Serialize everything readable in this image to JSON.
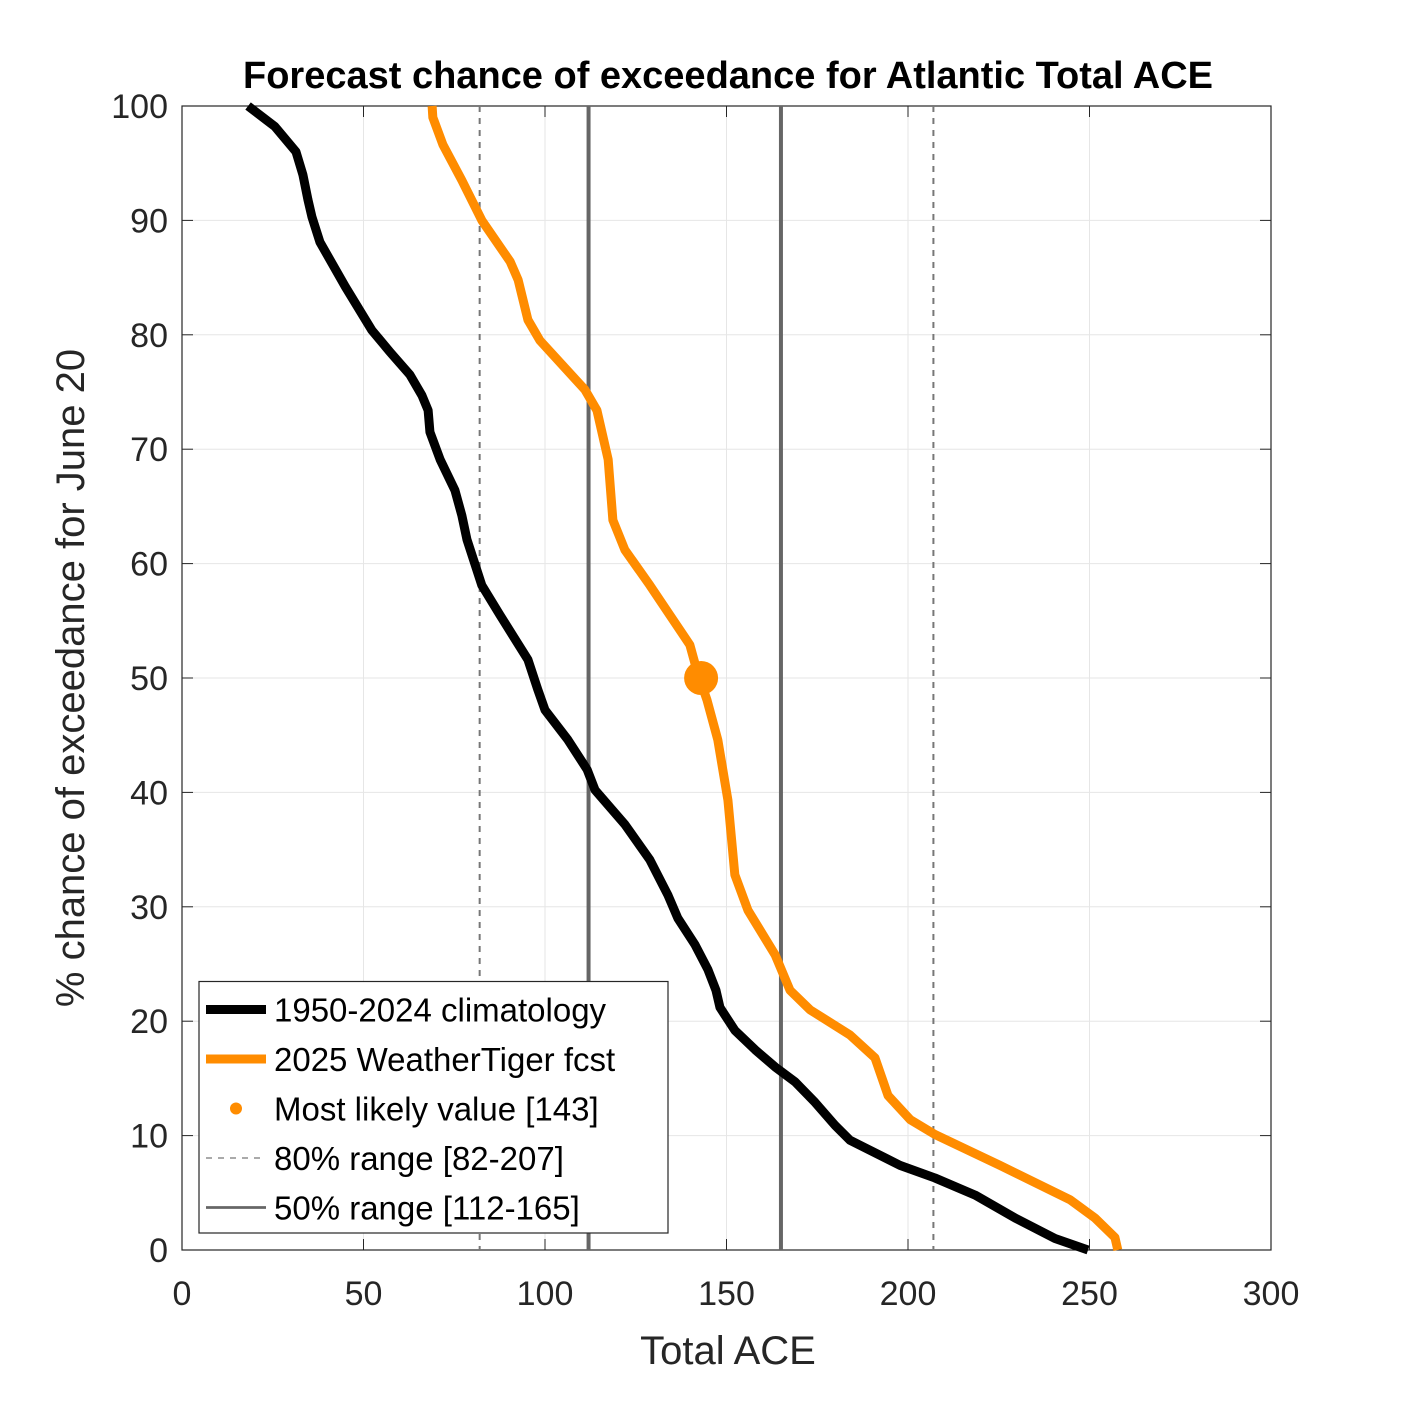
{
  "chart_data": {
    "type": "line",
    "title": "Forecast chance of exceedance for Atlantic Total ACE",
    "xlabel": "Total ACE",
    "ylabel": "% chance of exceedance for June 20",
    "xlim": [
      0,
      300
    ],
    "xticks": [
      0,
      50,
      100,
      150,
      200,
      250,
      300
    ],
    "ylim": [
      0,
      100
    ],
    "yticks": [
      0,
      10,
      20,
      30,
      40,
      50,
      60,
      70,
      80,
      90,
      100
    ],
    "grid": true,
    "legend": "lower left",
    "series": [
      {
        "name": "1950-2024 climatology",
        "color": "#000000",
        "x": [
          18.2,
          25.6,
          31.4,
          33.3,
          34.7,
          35.8,
          38,
          45,
          52.3,
          57.3,
          62.8,
          66.1,
          67.8,
          68.3,
          71.1,
          75.2,
          77.1,
          78.5,
          82.6,
          87.6,
          95.3,
          98,
          100,
          106.3,
          111.6,
          113.8,
          122,
          128.9,
          133.9,
          136.6,
          141.3,
          144.9,
          147.1,
          148.2,
          152.3,
          157.9,
          163.4,
          168.9,
          174.4,
          179.9,
          184,
          197.8,
          207.4,
          218.5,
          229.5,
          240.5,
          249.6
        ],
        "values": [
          100,
          98.2,
          96,
          94,
          91.8,
          90.3,
          88.1,
          84.2,
          80.4,
          78.5,
          76.5,
          74.7,
          73.4,
          71.5,
          69.1,
          66.4,
          64.2,
          62.1,
          58.1,
          55.5,
          51.6,
          49,
          47.2,
          44.6,
          42,
          40.2,
          37.2,
          34.1,
          31,
          29,
          26.7,
          24.5,
          22.7,
          21.2,
          19.2,
          17.5,
          16,
          14.7,
          12.9,
          10.9,
          9.6,
          7.4,
          6.3,
          4.8,
          2.8,
          1,
          0
        ]
      },
      {
        "name": "2025 WeatherTiger fcst",
        "color": "#ff8c00",
        "x": [
          68.9,
          69.1,
          71.9,
          77.1,
          82.6,
          90.4,
          92.6,
          95.3,
          98.6,
          111,
          114.3,
          117.4,
          118.7,
          122,
          128.9,
          134.4,
          139.9,
          141.8,
          144.6,
          147.6,
          150.4,
          152.3,
          155.9,
          163.4,
          167.5,
          173,
          184,
          190.9,
          194.5,
          200.6,
          207.4,
          225.3,
          244.6,
          251.5,
          257,
          257.8
        ],
        "values": [
          100,
          99,
          96.6,
          93.5,
          90,
          86.4,
          84.8,
          81.3,
          79.5,
          75.2,
          73.4,
          69.1,
          63.8,
          61.2,
          58.1,
          55.5,
          52.9,
          50.7,
          48.1,
          44.6,
          39.3,
          32.8,
          29.7,
          25.8,
          22.7,
          21,
          18.8,
          16.8,
          13.5,
          11.4,
          10.1,
          7.4,
          4.4,
          2.8,
          1.1,
          0
        ]
      }
    ],
    "points": [
      {
        "name": "Most likely value [143]",
        "color": "#ff8c00",
        "x": [
          143
        ],
        "values": [
          50
        ]
      }
    ],
    "reference_lines": [
      {
        "name": "80% range [82-207]",
        "color": "#777777",
        "style": "dashed",
        "values": [
          82,
          207
        ]
      },
      {
        "name": "50% range [112-165]",
        "color": "#666666",
        "style": "solid",
        "values": [
          112,
          165
        ]
      }
    ]
  }
}
